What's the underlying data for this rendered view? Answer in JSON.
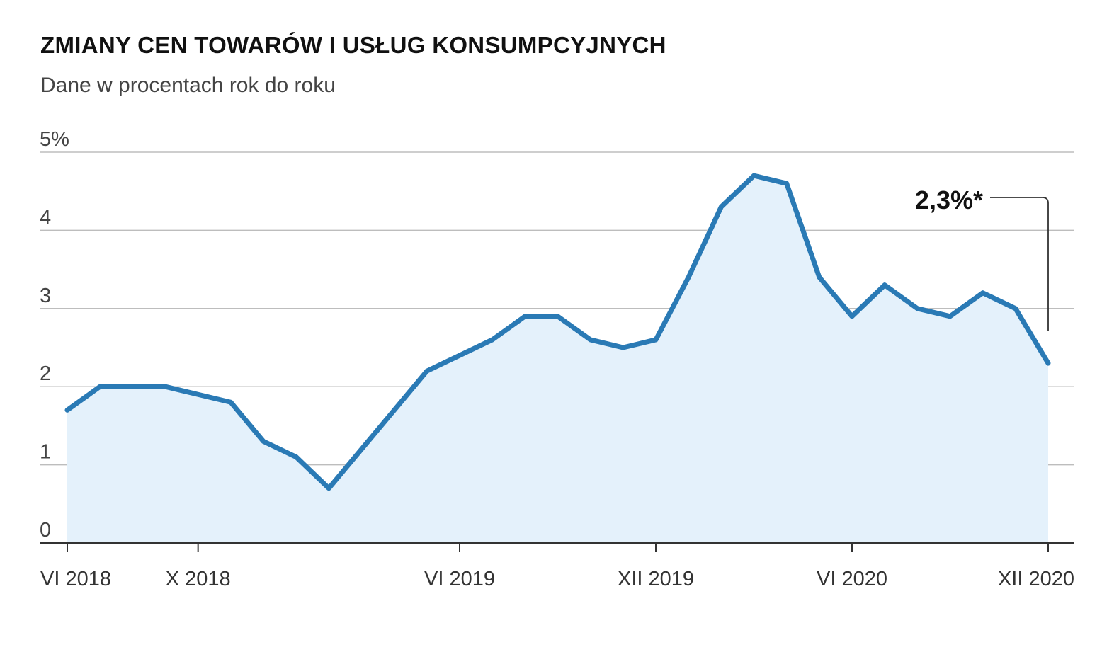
{
  "title": "ZMIANY CEN TOWARÓW I USŁUG KONSUMPCYJNYCH",
  "subtitle": "Dane w procentach rok do roku",
  "colors": {
    "line": "#2a7ab5",
    "area": "#e4f1fb",
    "grid": "#bdbdbd",
    "axis": "#333333",
    "annotation_line": "#333333"
  },
  "chart_data": {
    "type": "area",
    "x": [
      "VI 2018",
      "VII 2018",
      "VIII 2018",
      "IX 2018",
      "X 2018",
      "XI 2018",
      "XII 2018",
      "I 2019",
      "II 2019",
      "III 2019",
      "IV 2019",
      "V 2019",
      "VI 2019",
      "VII 2019",
      "VIII 2019",
      "IX 2019",
      "X 2019",
      "XI 2019",
      "XII 2019",
      "I 2020",
      "II 2020",
      "III 2020",
      "IV 2020",
      "V 2020",
      "VI 2020",
      "VII 2020",
      "VIII 2020",
      "IX 2020",
      "X 2020",
      "XI 2020",
      "XII 2020"
    ],
    "x_tick_labels": [
      "VI 2018",
      "X 2018",
      "VI 2019",
      "XII 2019",
      "VI 2020",
      "XII 2020"
    ],
    "series": [
      {
        "values": [
          1.7,
          2.0,
          2.0,
          2.0,
          1.9,
          1.8,
          1.3,
          1.1,
          0.7,
          1.2,
          1.7,
          2.2,
          2.4,
          2.6,
          2.9,
          2.9,
          2.6,
          2.5,
          2.6,
          3.4,
          4.3,
          4.7,
          4.6,
          3.4,
          2.9,
          3.3,
          3.0,
          2.9,
          3.2,
          3.0,
          2.3
        ]
      }
    ],
    "y_tick_labels": [
      "0",
      "1",
      "2",
      "3",
      "4",
      "5%"
    ],
    "ylim": [
      0,
      5
    ],
    "grid": true,
    "annotation": {
      "text": "2,3%*",
      "target": "XII 2020"
    }
  }
}
